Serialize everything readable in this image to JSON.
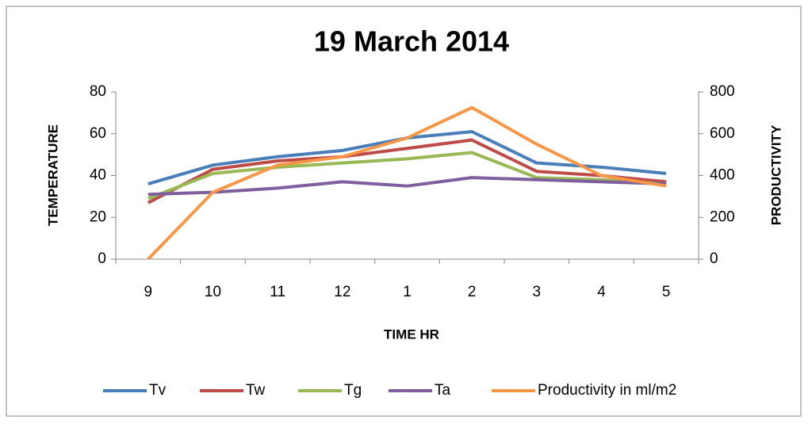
{
  "chart_data": {
    "type": "line",
    "title": "19 March 2014",
    "x_label": "TIME HR",
    "y_label": "TEMPERATURE",
    "y2_label": "PRODUCTIVITY",
    "categories": [
      "9",
      "10",
      "11",
      "12",
      "1",
      "2",
      "3",
      "4",
      "5"
    ],
    "series": [
      {
        "name": "Tv",
        "color": "#4a7ebb",
        "values": [
          36,
          45,
          49,
          52,
          58,
          61,
          46,
          44,
          41
        ]
      },
      {
        "name": "Tw",
        "color": "#be4b48",
        "values": [
          27,
          43,
          47,
          49,
          53,
          57,
          42,
          40,
          37
        ]
      },
      {
        "name": "Tg",
        "color": "#98b954",
        "values": [
          29,
          41,
          44,
          46,
          48,
          51,
          39,
          38,
          36
        ]
      },
      {
        "name": "Ta",
        "color": "#7d5fa0",
        "values": [
          31,
          32,
          34,
          37,
          35,
          39,
          38,
          37,
          36
        ]
      },
      {
        "name": "Productivity in ml/m2",
        "color": "#f79646",
        "axis": "y2",
        "values": [
          0,
          320,
          450,
          490,
          580,
          725,
          550,
          400,
          350
        ]
      }
    ],
    "ylim": [
      0,
      80
    ],
    "yticks": [
      0,
      20,
      40,
      60,
      80
    ],
    "y2lim": [
      0,
      800
    ],
    "y2ticks": [
      0,
      200,
      400,
      600,
      800
    ],
    "grid": false,
    "legend": "bottom"
  }
}
